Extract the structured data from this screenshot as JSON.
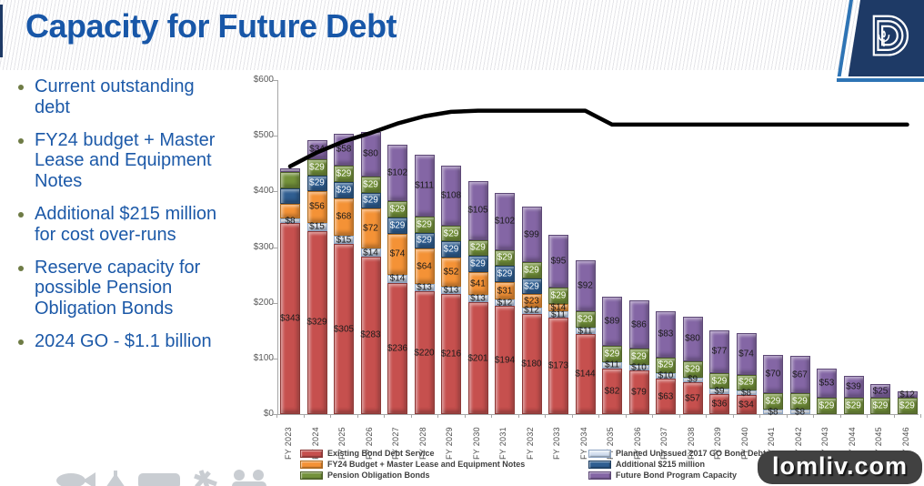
{
  "header": {
    "title": "Capacity for Future Debt"
  },
  "bullets": {
    "items": [
      "Current outstanding debt",
      "FY24 budget + Master Lease and Equipment Notes",
      "Additional $215 million for cost over-runs",
      "Reserve capacity for possible Pension Obligation Bonds",
      "2024 GO - $1.1 billion"
    ]
  },
  "logo": {
    "icon": "dallas-d-logo",
    "navy": "#1E3A66",
    "accent": "#2E74B5"
  },
  "watermark": {
    "text": "lomliv.com"
  },
  "chart_data": {
    "type": "bar",
    "subtype": "stacked-3d-with-line",
    "title": "",
    "xlabel": "",
    "ylabel": "",
    "ylim": [
      0,
      600
    ],
    "yticks": {
      "values": [
        0,
        100,
        200,
        300,
        400,
        500,
        600
      ],
      "labels": [
        "$0",
        "$100",
        "$200",
        "$300",
        "$400",
        "$500",
        "$600"
      ]
    },
    "grid": false,
    "legend_position": "bottom-two-columns",
    "categories": [
      "FY 2023",
      "FY 2024",
      "FY 2025",
      "FY 2026",
      "FY 2027",
      "FY 2028",
      "FY 2029",
      "FY 2030",
      "FY 2031",
      "FY 2032",
      "FY 2033",
      "FY 2034",
      "FY 2035",
      "FY 2036",
      "FY 2037",
      "FY 2038",
      "FY 2039",
      "FY 2040",
      "FY 2041",
      "FY 2042",
      "FY 2043",
      "FY 2044",
      "FY 2045",
      "FY 2046"
    ],
    "series": [
      {
        "name": "Existing Bond Debt Service",
        "color": "#C6504E",
        "border": "#8C3836",
        "label_color": "#1a1a1a",
        "values": [
          343,
          329,
          305,
          283,
          236,
          220,
          216,
          201,
          194,
          180,
          173,
          144,
          82,
          79,
          63,
          57,
          36,
          34,
          0,
          0,
          0,
          0,
          0,
          0
        ],
        "labels": [
          "$343",
          "$329",
          "$305",
          "$283",
          "$236",
          "$220",
          "$216",
          "$201",
          "$194",
          "$180",
          "$173",
          "$144",
          "$82",
          "$79",
          "$63",
          "$57",
          "$36",
          "$34",
          "",
          "",
          "",
          "",
          "",
          ""
        ]
      },
      {
        "name": "Planned Unissued 2017 GO Bond Debt",
        "color": "#BCCDE4",
        "color_light": "#EDF2F9",
        "border": "#8CA3C2",
        "label_color": "#1a1a1a",
        "values": [
          8,
          15,
          15,
          14,
          14,
          13,
          13,
          13,
          12,
          12,
          11,
          11,
          11,
          10,
          10,
          9,
          9,
          8,
          8,
          8,
          0,
          0,
          0,
          0
        ],
        "labels": [
          "$8",
          "$15",
          "$15",
          "$14",
          "$14",
          "$13",
          "$13",
          "$13",
          "$12",
          "$12",
          "$11",
          "$11",
          "$11",
          "$10",
          "$10",
          "$9",
          "$9",
          "$8",
          "$8",
          "$8",
          "",
          "",
          "",
          ""
        ]
      },
      {
        "name": "FY24 Budget + Master Lease and Equipment Notes",
        "color": "#F49236",
        "border": "#AD6A1F",
        "label_color": "#1a1a1a",
        "values": [
          26,
          56,
          68,
          72,
          74,
          64,
          52,
          41,
          31,
          23,
          14,
          0,
          0,
          0,
          0,
          0,
          0,
          0,
          0,
          0,
          0,
          0,
          0,
          0
        ],
        "labels": [
          "",
          "$56",
          "$68",
          "$72",
          "$74",
          "$64",
          "$52",
          "$41",
          "$31",
          "$23",
          "$14",
          "",
          "",
          "",
          "",
          "",
          "",
          "",
          "",
          "",
          "",
          "",
          "",
          ""
        ]
      },
      {
        "name": "Additional $215 million",
        "color": "#2F5E91",
        "border": "#1F3F62",
        "label_color": "#ffffff",
        "values": [
          29,
          29,
          29,
          29,
          29,
          29,
          29,
          29,
          29,
          29,
          0,
          0,
          0,
          0,
          0,
          0,
          0,
          0,
          0,
          0,
          0,
          0,
          0,
          0
        ],
        "labels": [
          "",
          "$29",
          "$29",
          "$29",
          "$29",
          "$29",
          "$29",
          "$29",
          "$29",
          "$29",
          "",
          "",
          "",
          "",
          "",
          "",
          "",
          "",
          "",
          "",
          "",
          "",
          "",
          ""
        ]
      },
      {
        "name": "Pension Obligation Bonds",
        "color": "#74923B",
        "border": "#4F6228",
        "label_color": "#ffffff",
        "values": [
          29,
          29,
          29,
          29,
          29,
          29,
          29,
          29,
          29,
          29,
          29,
          29,
          29,
          29,
          29,
          29,
          29,
          29,
          29,
          29,
          29,
          29,
          29,
          29
        ],
        "labels": [
          "",
          "$29",
          "$29",
          "$29",
          "$29",
          "$29",
          "$29",
          "$29",
          "$29",
          "$29",
          "$29",
          "$29",
          "$29",
          "$29",
          "$29",
          "$29",
          "$29",
          "$29",
          "$29",
          "$29",
          "$29",
          "$29",
          "$29",
          "$29"
        ]
      },
      {
        "name": "Future Bond Program Capacity",
        "color": "#8466A5",
        "border": "#5D4876",
        "label_color": "#1a1a1a",
        "values": [
          7,
          34,
          58,
          80,
          102,
          111,
          108,
          105,
          102,
          99,
          95,
          92,
          89,
          86,
          83,
          80,
          77,
          74,
          70,
          67,
          53,
          39,
          25,
          12
        ],
        "labels": [
          "",
          "$34",
          "$58",
          "$80",
          "$102",
          "$111",
          "$108",
          "$105",
          "$102",
          "$99",
          "$95",
          "$92",
          "$89",
          "$86",
          "$83",
          "$80",
          "$77",
          "$74",
          "$70",
          "$67",
          "$53",
          "$39",
          "$25",
          "$12"
        ]
      }
    ],
    "line": {
      "name": "",
      "color": "#000000",
      "values": [
        445,
        470,
        490,
        505,
        522,
        535,
        543,
        545,
        545,
        545,
        545,
        545,
        520,
        520,
        520,
        520,
        520,
        520,
        520,
        520,
        520,
        520,
        520,
        520
      ]
    }
  }
}
